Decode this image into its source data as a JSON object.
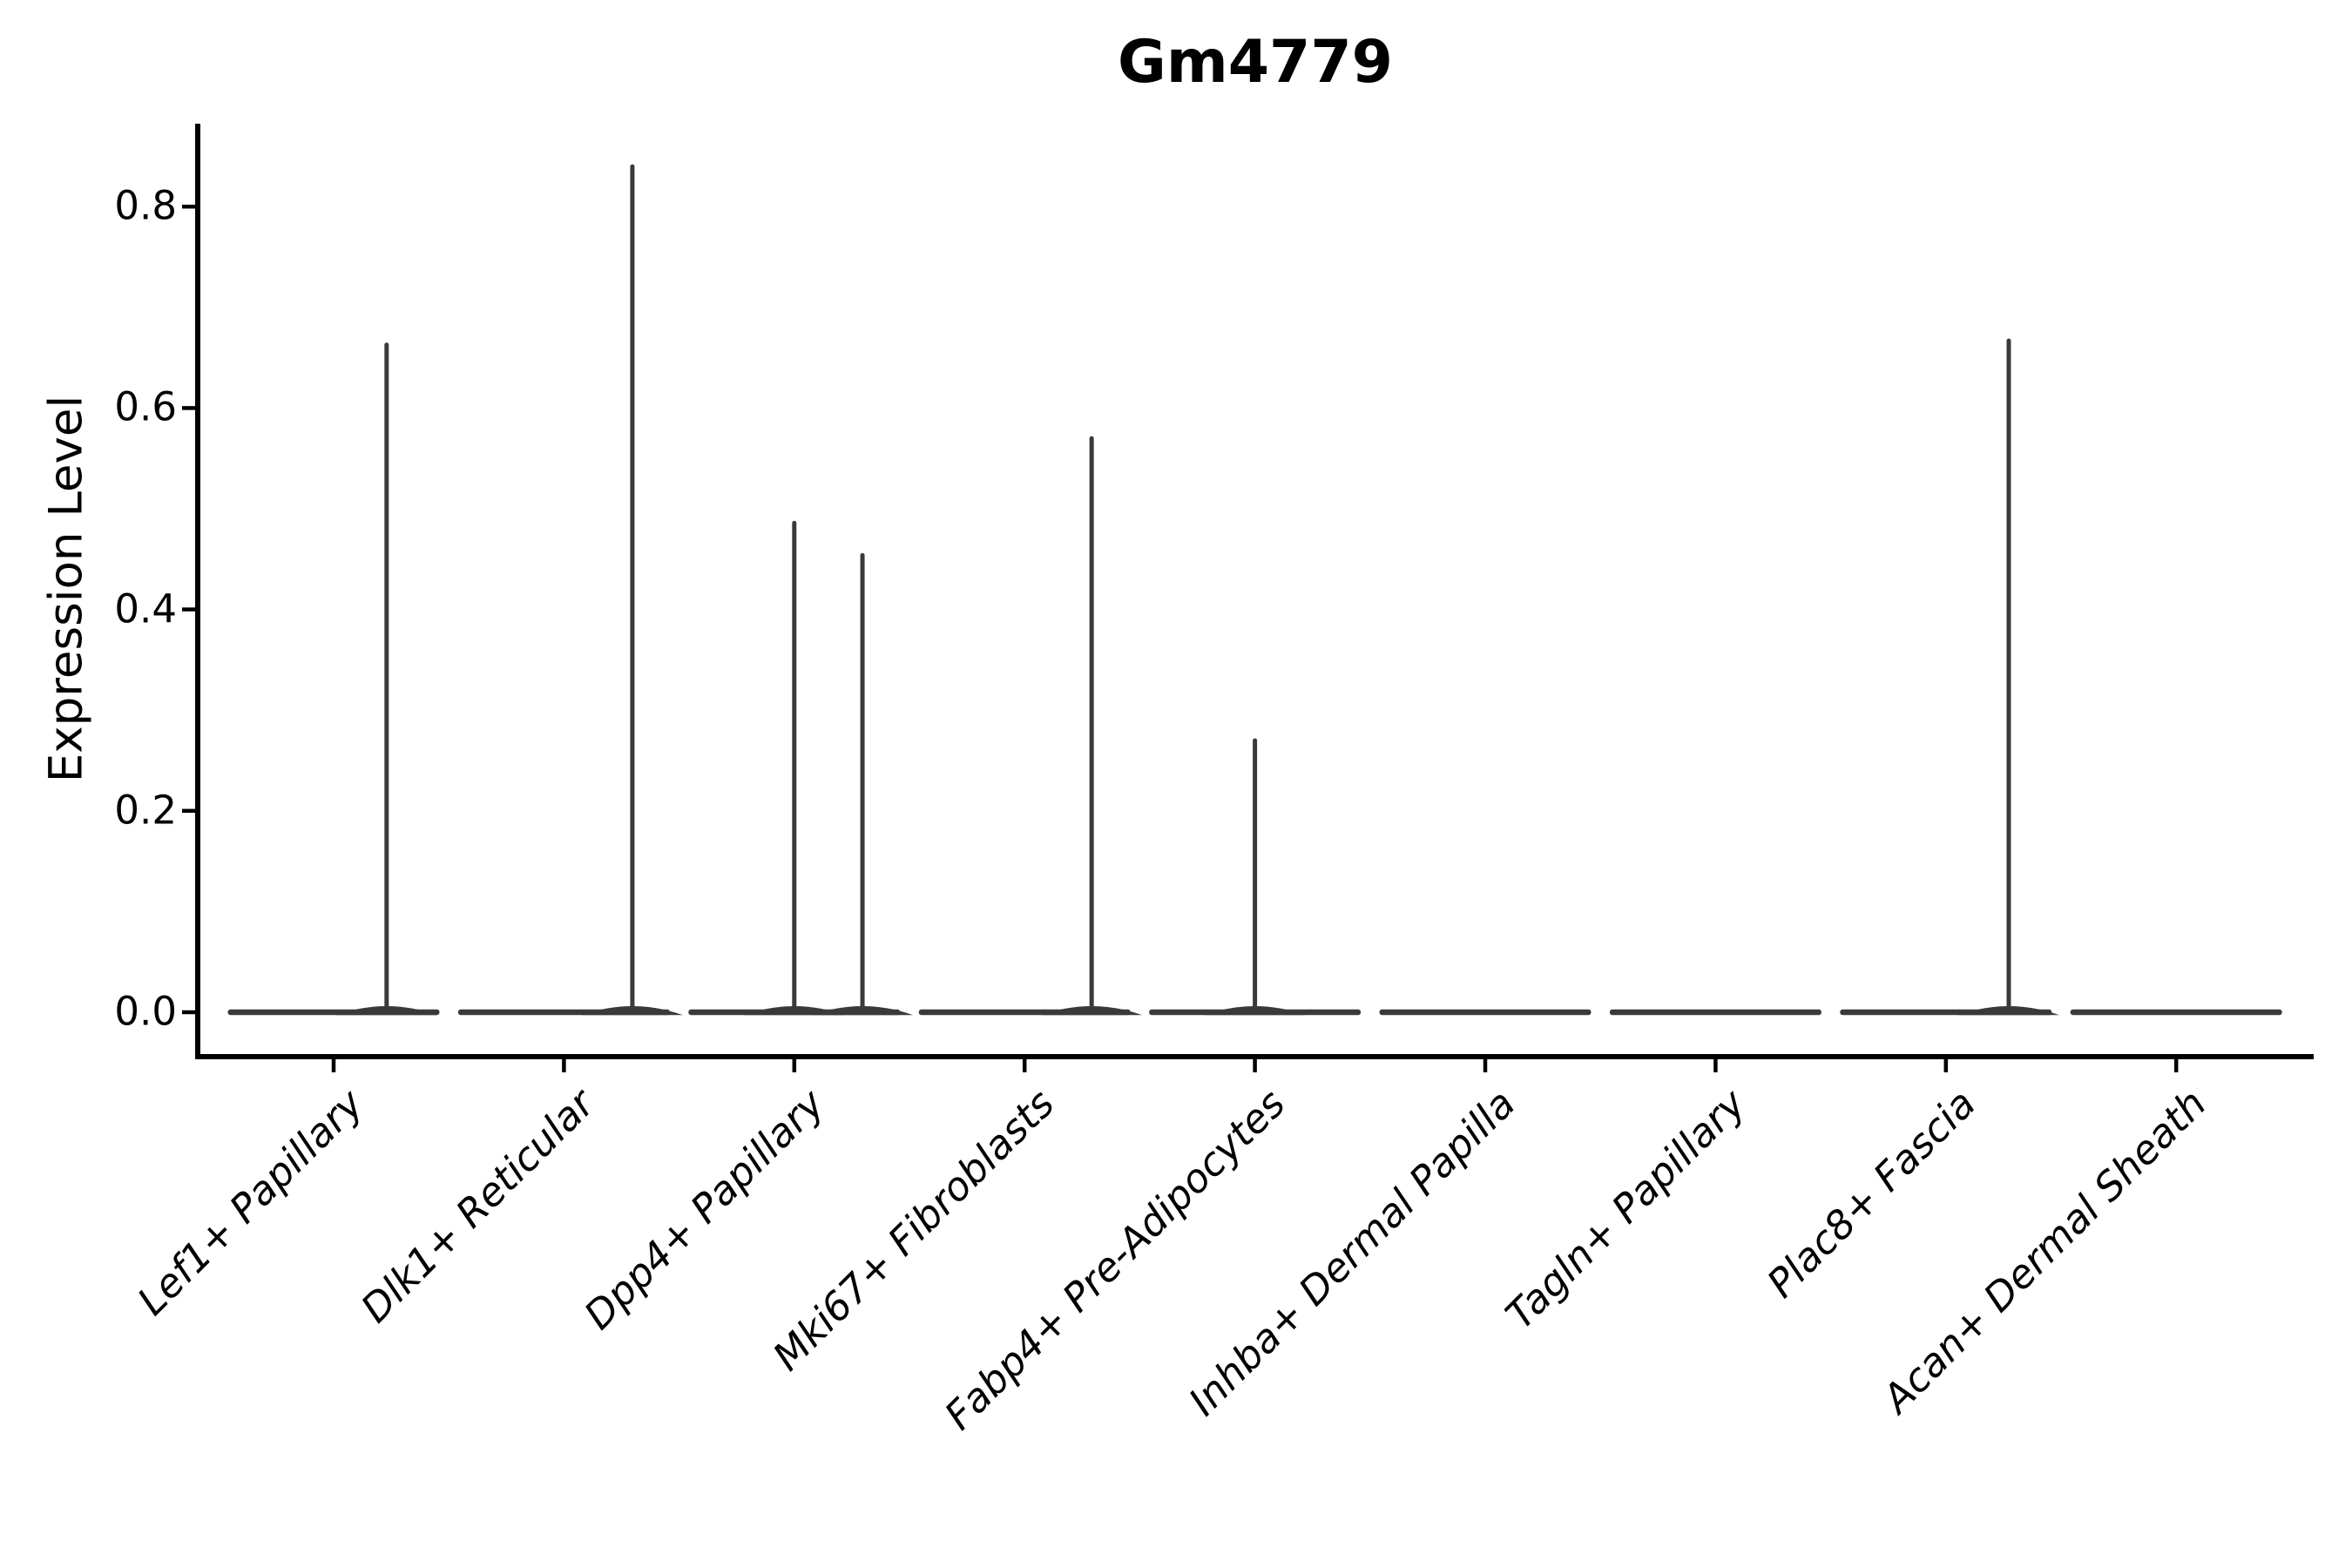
{
  "title": "Gm4779",
  "chart_data": {
    "type": "violin",
    "title": "Gm4779",
    "xlabel": "",
    "ylabel": "Expression Level",
    "ylim": [
      -0.042,
      0.885
    ],
    "yticks": [
      0.0,
      0.2,
      0.4,
      0.6,
      0.8
    ],
    "grid": false,
    "legend": "none",
    "x_label_rotation_deg": 45,
    "categories": [
      "Lef1+ Papillary",
      "Dlk1+ Reticular",
      "Dpp4+ Papillary",
      "Mki67+ Fibroblasts",
      "Fabp4+ Pre-Adipocytes",
      "Inhba+ Dermal Papilla",
      "Tagln+ Papillary",
      "Plac8+ Fascia",
      "Acan+ Dermal Sheath"
    ],
    "violins": [
      {
        "category": "Lef1+ Papillary",
        "baseline_value": 0.0,
        "max_value": 0.665,
        "spikes": [
          {
            "value": 0.665,
            "offset_frac": 0.23
          }
        ]
      },
      {
        "category": "Dlk1+ Reticular",
        "baseline_value": 0.0,
        "max_value": 0.842,
        "spikes": [
          {
            "value": 0.842,
            "offset_frac": 0.297
          }
        ]
      },
      {
        "category": "Dpp4+ Papillary",
        "baseline_value": 0.0,
        "max_value": 0.488,
        "spikes": [
          {
            "value": 0.488,
            "offset_frac": 0.0
          },
          {
            "value": 0.456,
            "offset_frac": 0.296
          }
        ]
      },
      {
        "category": "Mki67+ Fibroblasts",
        "baseline_value": 0.0,
        "max_value": 0.572,
        "spikes": [
          {
            "value": 0.572,
            "offset_frac": 0.291
          }
        ]
      },
      {
        "category": "Fabp4+ Pre-Adipocytes",
        "baseline_value": 0.0,
        "max_value": 0.272,
        "spikes": [
          {
            "value": 0.272,
            "offset_frac": 0.0
          }
        ]
      },
      {
        "category": "Inhba+ Dermal Papilla",
        "baseline_value": 0.0,
        "max_value": 0.0,
        "spikes": []
      },
      {
        "category": "Tagln+ Papillary",
        "baseline_value": 0.0,
        "max_value": 0.0,
        "spikes": []
      },
      {
        "category": "Plac8+ Fascia",
        "baseline_value": 0.0,
        "max_value": 0.669,
        "spikes": [
          {
            "value": 0.669,
            "offset_frac": 0.273
          }
        ]
      },
      {
        "category": "Acan+ Dermal Sheath",
        "baseline_value": 0.0,
        "max_value": 0.0,
        "spikes": []
      }
    ]
  },
  "colors": {
    "violin": "#3a3a3a",
    "axis": "#000000",
    "text": "#000000",
    "background": "#ffffff"
  }
}
